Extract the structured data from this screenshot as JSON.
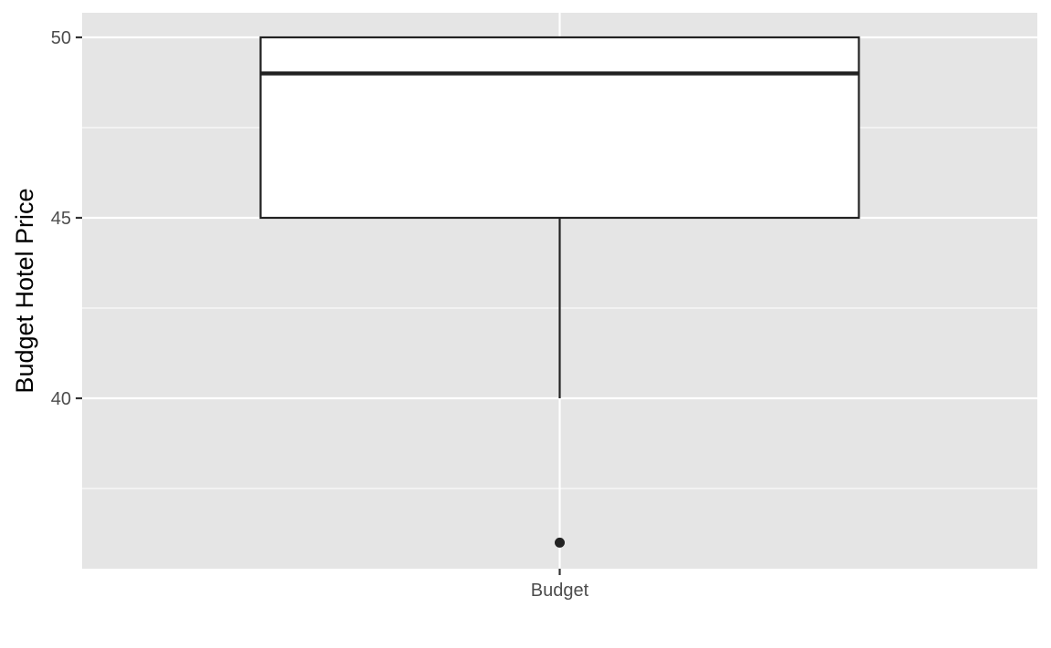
{
  "chart_data": {
    "type": "boxplot",
    "title": "",
    "xlabel": "",
    "ylabel": "Budget Hotel Price",
    "categories": [
      "Budget"
    ],
    "boxes": [
      {
        "category": "Budget",
        "q1": 45,
        "median": 49,
        "q3": 50,
        "whisker_low": 40,
        "whisker_high": 50,
        "outliers": [
          36
        ]
      }
    ],
    "ylim": [
      35.3,
      50.7
    ],
    "yticks": [
      40,
      45,
      50
    ],
    "yminor": [
      37.5,
      42.5,
      47.5
    ],
    "grid": true,
    "legend": "none",
    "colors": {
      "panel_background": "#e5e5e5",
      "grid_line": "#ffffff",
      "box_fill": "#ffffff",
      "box_stroke": "#222222",
      "outlier_point": "#222222",
      "tick_mark": "#333333",
      "tick_text": "#4d4d4d",
      "axis_title": "#000000"
    }
  }
}
